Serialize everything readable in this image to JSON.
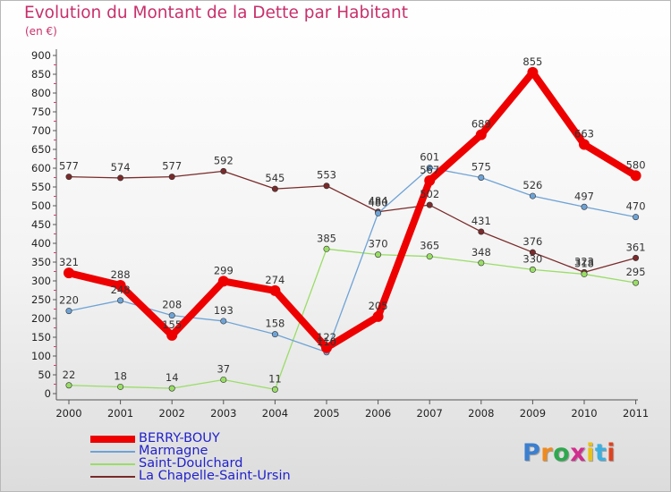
{
  "title": "Evolution du Montant de la Dette par Habitant",
  "unit": "(en €)",
  "logo": {
    "text": "Proxiti",
    "letter_colors": [
      "#3b7fd0",
      "#f08a1e",
      "#2fa84f",
      "#d22c8f",
      "#e8c21a",
      "#3bb0e0",
      "#e0421e"
    ]
  },
  "chart_data": {
    "type": "line",
    "categories": [
      "2000",
      "2001",
      "2002",
      "2003",
      "2004",
      "2005",
      "2006",
      "2007",
      "2008",
      "2009",
      "2010",
      "2011"
    ],
    "ylim": [
      0,
      900
    ],
    "yticks": [
      0,
      50,
      100,
      150,
      200,
      250,
      300,
      350,
      400,
      450,
      500,
      550,
      600,
      650,
      700,
      750,
      800,
      850,
      900
    ],
    "grid": false,
    "legend_position": "bottom-left",
    "series": [
      {
        "name": "BERRY-BOUY",
        "color": "#ee0000",
        "values": [
          321,
          288,
          155,
          299,
          274,
          122,
          205,
          567,
          689,
          855,
          663,
          580
        ]
      },
      {
        "name": "Marmagne",
        "color": "#6ea3d6",
        "values": [
          220,
          248,
          208,
          193,
          158,
          110,
          480,
          601,
          575,
          526,
          497,
          470
        ]
      },
      {
        "name": "Saint-Doulchard",
        "color": "#99dd66",
        "values": [
          22,
          18,
          14,
          37,
          11,
          385,
          370,
          365,
          348,
          330,
          318,
          295
        ]
      },
      {
        "name": "La Chapelle-Saint-Ursin",
        "color": "#7a2a2a",
        "values": [
          577,
          574,
          577,
          592,
          545,
          553,
          484,
          502,
          431,
          376,
          323,
          361
        ]
      }
    ]
  }
}
